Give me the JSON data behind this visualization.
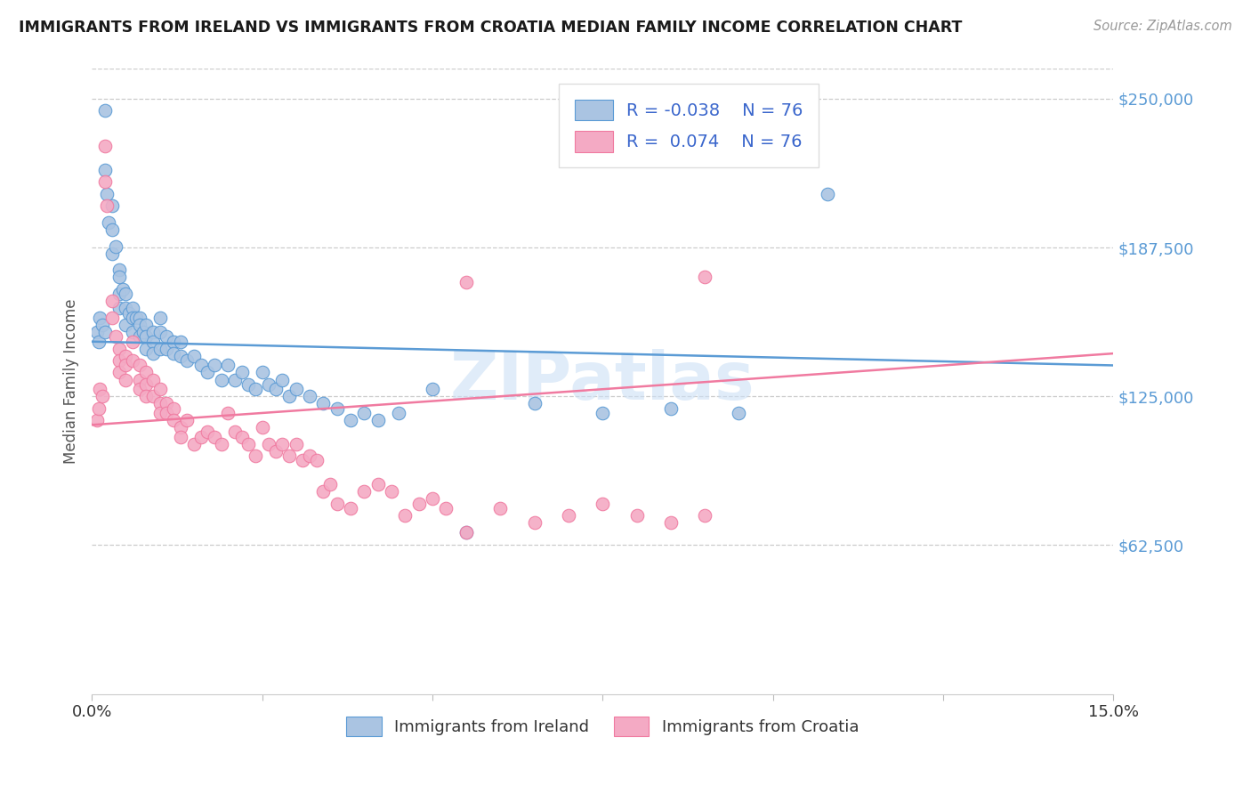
{
  "title": "IMMIGRANTS FROM IRELAND VS IMMIGRANTS FROM CROATIA MEDIAN FAMILY INCOME CORRELATION CHART",
  "source": "Source: ZipAtlas.com",
  "ylabel": "Median Family Income",
  "y_ticks": [
    62500,
    125000,
    187500,
    250000
  ],
  "y_tick_labels": [
    "$62,500",
    "$125,000",
    "$187,500",
    "$250,000"
  ],
  "x_min": 0.0,
  "x_max": 0.15,
  "y_min": 0,
  "y_max": 262500,
  "legend_ireland": "Immigrants from Ireland",
  "legend_croatia": "Immigrants from Croatia",
  "R_ireland": -0.038,
  "R_croatia": 0.074,
  "N_ireland": 76,
  "N_croatia": 76,
  "ireland_color": "#aac4e2",
  "croatia_color": "#f4aac4",
  "ireland_line_color": "#5b9bd5",
  "croatia_line_color": "#f07aa0",
  "background_color": "#ffffff",
  "watermark": "ZIPatlas",
  "ireland_regression": [
    148000,
    138000
  ],
  "croatia_regression": [
    113000,
    143000
  ],
  "ireland_x": [
    0.0008,
    0.001,
    0.0012,
    0.0015,
    0.002,
    0.002,
    0.0022,
    0.0025,
    0.003,
    0.003,
    0.003,
    0.0035,
    0.004,
    0.004,
    0.004,
    0.004,
    0.0045,
    0.005,
    0.005,
    0.005,
    0.0055,
    0.006,
    0.006,
    0.006,
    0.0065,
    0.007,
    0.007,
    0.007,
    0.0075,
    0.008,
    0.008,
    0.008,
    0.009,
    0.009,
    0.009,
    0.01,
    0.01,
    0.01,
    0.011,
    0.011,
    0.012,
    0.012,
    0.013,
    0.013,
    0.014,
    0.015,
    0.016,
    0.017,
    0.018,
    0.019,
    0.02,
    0.021,
    0.022,
    0.023,
    0.024,
    0.025,
    0.026,
    0.027,
    0.028,
    0.029,
    0.03,
    0.032,
    0.034,
    0.036,
    0.038,
    0.04,
    0.042,
    0.045,
    0.05,
    0.055,
    0.065,
    0.075,
    0.085,
    0.095,
    0.108,
    0.002
  ],
  "ireland_y": [
    152000,
    148000,
    158000,
    155000,
    245000,
    220000,
    210000,
    198000,
    205000,
    195000,
    185000,
    188000,
    178000,
    175000,
    168000,
    162000,
    170000,
    168000,
    162000,
    155000,
    160000,
    162000,
    158000,
    152000,
    158000,
    158000,
    155000,
    150000,
    152000,
    155000,
    150000,
    145000,
    152000,
    148000,
    143000,
    158000,
    152000,
    145000,
    150000,
    145000,
    148000,
    143000,
    148000,
    142000,
    140000,
    142000,
    138000,
    135000,
    138000,
    132000,
    138000,
    132000,
    135000,
    130000,
    128000,
    135000,
    130000,
    128000,
    132000,
    125000,
    128000,
    125000,
    122000,
    120000,
    115000,
    118000,
    115000,
    118000,
    128000,
    68000,
    122000,
    118000,
    120000,
    118000,
    210000,
    152000
  ],
  "croatia_x": [
    0.0008,
    0.001,
    0.0012,
    0.0015,
    0.002,
    0.002,
    0.0022,
    0.003,
    0.003,
    0.0035,
    0.004,
    0.004,
    0.004,
    0.005,
    0.005,
    0.005,
    0.006,
    0.006,
    0.007,
    0.007,
    0.007,
    0.008,
    0.008,
    0.008,
    0.009,
    0.009,
    0.01,
    0.01,
    0.01,
    0.011,
    0.011,
    0.012,
    0.012,
    0.013,
    0.013,
    0.014,
    0.015,
    0.016,
    0.017,
    0.018,
    0.019,
    0.02,
    0.021,
    0.022,
    0.023,
    0.024,
    0.025,
    0.026,
    0.027,
    0.028,
    0.029,
    0.03,
    0.031,
    0.032,
    0.033,
    0.034,
    0.035,
    0.036,
    0.038,
    0.04,
    0.042,
    0.044,
    0.046,
    0.048,
    0.05,
    0.052,
    0.055,
    0.06,
    0.065,
    0.07,
    0.075,
    0.08,
    0.085,
    0.09,
    0.055,
    0.09
  ],
  "croatia_y": [
    115000,
    120000,
    128000,
    125000,
    230000,
    215000,
    205000,
    165000,
    158000,
    150000,
    145000,
    140000,
    135000,
    142000,
    138000,
    132000,
    148000,
    140000,
    138000,
    132000,
    128000,
    135000,
    130000,
    125000,
    132000,
    125000,
    128000,
    122000,
    118000,
    122000,
    118000,
    120000,
    115000,
    112000,
    108000,
    115000,
    105000,
    108000,
    110000,
    108000,
    105000,
    118000,
    110000,
    108000,
    105000,
    100000,
    112000,
    105000,
    102000,
    105000,
    100000,
    105000,
    98000,
    100000,
    98000,
    85000,
    88000,
    80000,
    78000,
    85000,
    88000,
    85000,
    75000,
    80000,
    82000,
    78000,
    68000,
    78000,
    72000,
    75000,
    80000,
    75000,
    72000,
    75000,
    173000,
    175000
  ]
}
